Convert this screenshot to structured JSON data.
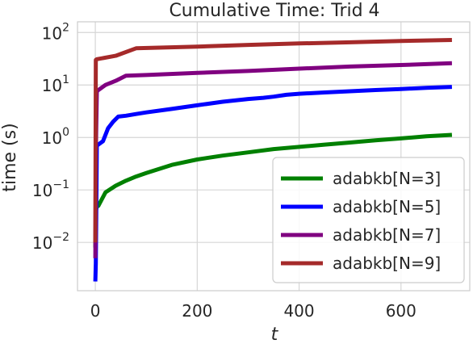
{
  "chart_data": {
    "type": "line",
    "title": "Cumulative Time: Trid 4",
    "xlabel": "t",
    "ylabel": "time (s)",
    "xlim": [
      -35,
      735
    ],
    "ylim": [
      0.0012,
      160
    ],
    "yscale": "log",
    "xticks": [
      0,
      200,
      400,
      600
    ],
    "xtick_labels": [
      "0",
      "200",
      "400",
      "600"
    ],
    "yticks": [
      0.01,
      0.1,
      1,
      10,
      100
    ],
    "ytick_labels": [
      {
        "base": "10",
        "exp": "−2"
      },
      {
        "base": "10",
        "exp": "−1"
      },
      {
        "base": "10",
        "exp": "0"
      },
      {
        "base": "10",
        "exp": "1"
      },
      {
        "base": "10",
        "exp": "2"
      }
    ],
    "grid": true,
    "legend_position": "lower-right",
    "series": [
      {
        "name": "adabkb[N=3]",
        "color": "#008000",
        "x": [
          0,
          1,
          3,
          6,
          20,
          40,
          60,
          80,
          100,
          150,
          200,
          250,
          300,
          350,
          400,
          450,
          500,
          550,
          600,
          650,
          700
        ],
        "y": [
          0.008,
          0.04,
          0.048,
          0.05,
          0.09,
          0.12,
          0.15,
          0.18,
          0.21,
          0.3,
          0.38,
          0.45,
          0.52,
          0.6,
          0.66,
          0.73,
          0.8,
          0.88,
          0.96,
          1.05,
          1.12
        ]
      },
      {
        "name": "adabkb[N=5]",
        "color": "#0000ff",
        "x": [
          0,
          1,
          3,
          5,
          15,
          25,
          35,
          45,
          60,
          80,
          100,
          150,
          200,
          250,
          300,
          330,
          350,
          375,
          400,
          450,
          500,
          550,
          600,
          650,
          700
        ],
        "y": [
          0.0018,
          0.004,
          0.7,
          0.72,
          0.85,
          1.5,
          2.0,
          2.5,
          2.6,
          2.8,
          3.0,
          3.5,
          4.1,
          4.8,
          5.4,
          5.7,
          6.0,
          6.5,
          6.8,
          7.2,
          7.6,
          8.0,
          8.4,
          8.8,
          9.2
        ]
      },
      {
        "name": "adabkb[N=7]",
        "color": "#800080",
        "x": [
          0,
          1,
          3,
          6,
          20,
          40,
          60,
          100,
          200,
          300,
          400,
          500,
          600,
          700
        ],
        "y": [
          0.005,
          0.5,
          7.5,
          8.0,
          10.0,
          12.0,
          15.0,
          15.5,
          17.0,
          18.5,
          20.5,
          22.5,
          24.0,
          26.0
        ]
      },
      {
        "name": "adabkb[N=9]",
        "color": "#a52a2a",
        "x": [
          0,
          1,
          3,
          40,
          80,
          200,
          300,
          400,
          500,
          600,
          700
        ],
        "y": [
          0.01,
          30,
          31,
          36,
          50,
          54,
          58,
          62,
          65,
          69,
          72
        ]
      }
    ]
  }
}
